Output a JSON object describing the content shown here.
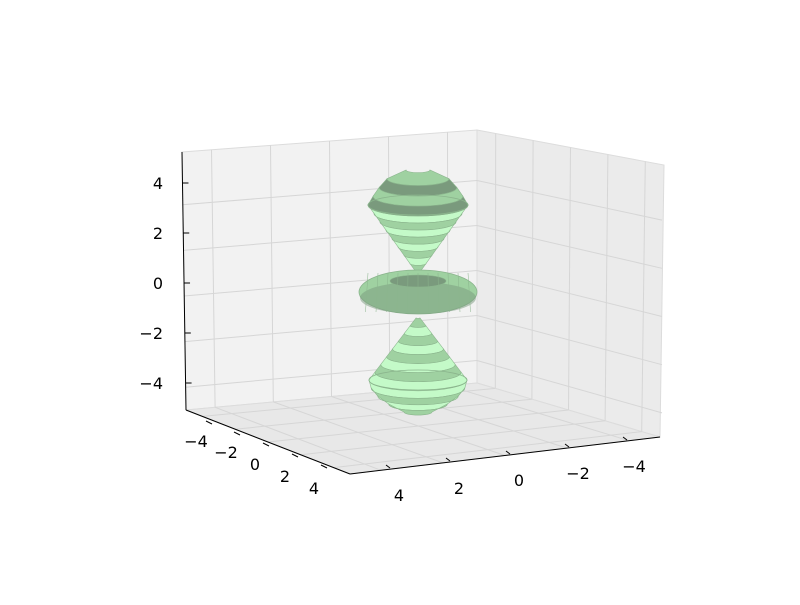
{
  "chart_data": {
    "type": "surface3d",
    "title": "",
    "xlabel": "",
    "ylabel": "",
    "zlabel": "",
    "xlim": [
      -5,
      5
    ],
    "ylim": [
      -5,
      5
    ],
    "zlim": [
      -5,
      5
    ],
    "x_ticks": [
      "4",
      "2",
      "0",
      "−2",
      "−4"
    ],
    "y_ticks": [
      "−4",
      "−2",
      "0",
      "2",
      "4"
    ],
    "z_ticks": [
      "4",
      "2",
      "0",
      "−2",
      "−4"
    ],
    "grid": true,
    "surfaces": [
      {
        "shape": "cone",
        "direction": "up",
        "z_range": [
          1,
          5
        ],
        "max_radius": 2
      },
      {
        "shape": "torus",
        "center_z": 0,
        "major_radius": 1.5,
        "minor_radius": 0.6
      },
      {
        "shape": "cone",
        "direction": "down",
        "z_range": [
          -5,
          -1
        ],
        "max_radius": 2
      }
    ],
    "colors": {
      "light": "#c4fac8",
      "mid": "#9fd1a1",
      "dark": "#7a9a7d",
      "edge": "#8bb58d"
    }
  }
}
